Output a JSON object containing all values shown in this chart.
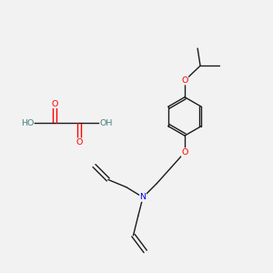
{
  "bg_color": "#f2f2f2",
  "atom_colors": {
    "C": "#000000",
    "O": "#ff0000",
    "N": "#0000ee",
    "H": "#4a8080"
  },
  "bond_color": "#1a1a1a",
  "bond_lw": 1.0,
  "font_size": 6.8
}
